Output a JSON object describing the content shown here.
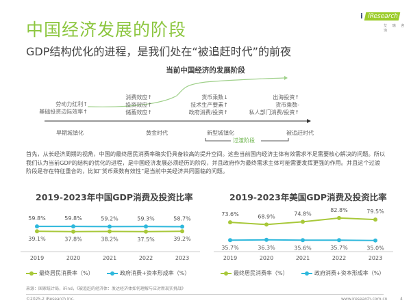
{
  "header": {
    "title": "中国经济发展的阶段",
    "subtitle": "GDP结构优化的进程，是我们处在“被追赶时代”的前夜",
    "logo_text": "iResearch",
    "logo_sub": "艾 瑞 咨 询"
  },
  "diagram": {
    "title": "当前中国经济的发展阶段",
    "groups": [
      {
        "lines": [
          "劳动力红利↑",
          "基础投资边际效率↑"
        ],
        "stage": "早期城镇化"
      },
      {
        "lines": [
          "消费效应↑",
          "投资效应↑",
          "储蓄效应↑"
        ],
        "stage": "黄金时代"
      },
      {
        "lines": [
          "货币乘数↓",
          "技术生产要素↑",
          "政府消费/投资↑"
        ],
        "stage": "新型城镇化"
      },
      {
        "lines": [
          "出海投资↑",
          "货币乘数-",
          "私人部门消费/投资↑"
        ],
        "stage": "被追赶时代"
      }
    ],
    "transition_label": "过渡阶段"
  },
  "paragraph": "首先，从长经济周期的视角，中国的最终居民消费率确实仍具备较高的提升空间。这些当前国内经济主体有效需求不足需要核心解决的问题。所以我们认为当前GDP的结构的优化的进程，是中国经济发展必须经历的阶段，并且政府作为最终需求主体可能需要发挥更强的作用。并且这个过渡阶段是存在特征重合的，比如“货币乘数有效性”是当前中美经济共同面临的问题。",
  "colors": {
    "green": "#a8c83a",
    "blue": "#2fb8dc",
    "title_green": "#8cc63f"
  },
  "chart_data": [
    {
      "type": "line",
      "title": "2019-2023年中国GDP消费及投资比率",
      "categories": [
        "2019",
        "2020",
        "2021",
        "2022",
        "2023"
      ],
      "ylim": [
        -30,
        130
      ],
      "series": [
        {
          "name": "最终居民消费率（%）",
          "color": "#a8c83a",
          "values": [
            39.1,
            37.8,
            38.2,
            37.5,
            39.2
          ],
          "labels": [
            "39.1%",
            "37.8%",
            "38.2%",
            "37.5%",
            "39.2%"
          ]
        },
        {
          "name": "政府消费+资本形成率（%）",
          "color": "#2fb8dc",
          "values": [
            59.8,
            59.8,
            59.2,
            59.3,
            58.7
          ],
          "labels": [
            "59.8%",
            "59.8%",
            "59.2%",
            "59.3%",
            "58.7%"
          ]
        }
      ]
    },
    {
      "type": "line",
      "title": "2019-2023年美国GDP消费及投资比率",
      "categories": [
        "2019",
        "2020",
        "2021",
        "2022",
        "2023"
      ],
      "ylim": [
        20,
        100
      ],
      "series": [
        {
          "name": "最终居民消费率（%）",
          "color": "#a8c83a",
          "values": [
            73.6,
            68.9,
            74.8,
            82.8,
            79.5
          ],
          "labels": [
            "73.6%",
            "68.9%",
            "74.8%",
            "82.8%",
            "79.5%"
          ]
        },
        {
          "name": "政府消费+资本形成率（%）",
          "color": "#2fb8dc",
          "values": [
            35.7,
            36.3,
            35.6,
            35.7,
            35.0
          ],
          "labels": [
            "35.7%",
            "36.3%",
            "35.6%",
            "35.7%",
            "35.0%"
          ]
        }
      ]
    }
  ],
  "footer": {
    "source": "来源：国家统计局，iFind，《被追赶的经济体：发达经济体如何理解与应对新现实挑战》",
    "copyright": "©2025.2 iResearch Inc.",
    "url": "www.iresearch.com.cn",
    "page": "4"
  }
}
